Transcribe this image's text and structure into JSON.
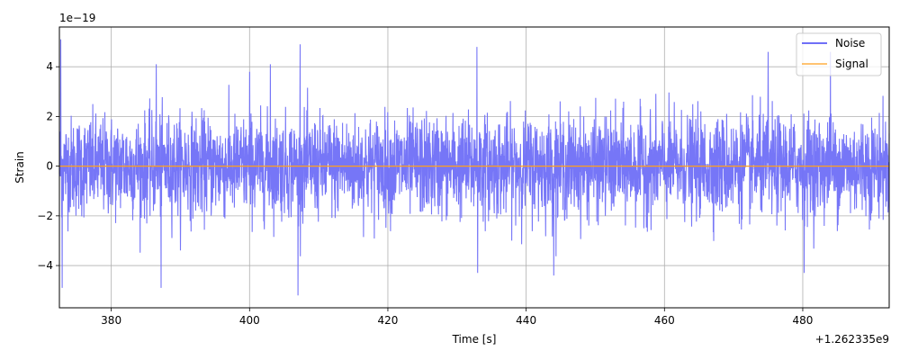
{
  "chart_data": {
    "type": "line",
    "title": "",
    "xlabel": "Time [s]",
    "ylabel": "Strain",
    "x_offset_label": "+1.262335e9",
    "y_scale_label": "1e−19",
    "xlim": [
      372.5,
      492.5
    ],
    "ylim": [
      -5.7,
      5.6
    ],
    "x_ticks": [
      380,
      400,
      420,
      440,
      460,
      480
    ],
    "x_tick_labels": [
      "380",
      "400",
      "420",
      "440",
      "460",
      "480"
    ],
    "y_ticks": [
      -4,
      -2,
      0,
      2,
      4
    ],
    "y_tick_labels": [
      "−4",
      "−2",
      "0",
      "2",
      "4"
    ],
    "grid": true,
    "legend_position": "top-right",
    "series": [
      {
        "name": "Noise",
        "color": "#6f6ff7",
        "x_range": [
          372.5,
          492.5
        ],
        "envelope_typical_max": 2.2,
        "envelope_typical_min": -2.2,
        "peak_max": 5.1,
        "peak_min": -5.2,
        "notable_peaks": [
          {
            "x": 372.7,
            "y": 5.1
          },
          {
            "x": 372.9,
            "y": -4.9
          },
          {
            "x": 386.5,
            "y": 4.1
          },
          {
            "x": 387.2,
            "y": -4.9
          },
          {
            "x": 400.0,
            "y": 3.8
          },
          {
            "x": 403.0,
            "y": 4.1
          },
          {
            "x": 407.3,
            "y": 4.9
          },
          {
            "x": 407.0,
            "y": -5.2
          },
          {
            "x": 432.9,
            "y": 4.8
          },
          {
            "x": 433.0,
            "y": -4.3
          },
          {
            "x": 444.0,
            "y": -4.4
          },
          {
            "x": 475.0,
            "y": 4.6
          },
          {
            "x": 480.2,
            "y": -4.3
          },
          {
            "x": 484.0,
            "y": 4.6
          }
        ]
      },
      {
        "name": "Signal",
        "color": "#ff9f1c",
        "x": [
          372.5,
          492.5
        ],
        "y": [
          0,
          0
        ]
      }
    ]
  }
}
